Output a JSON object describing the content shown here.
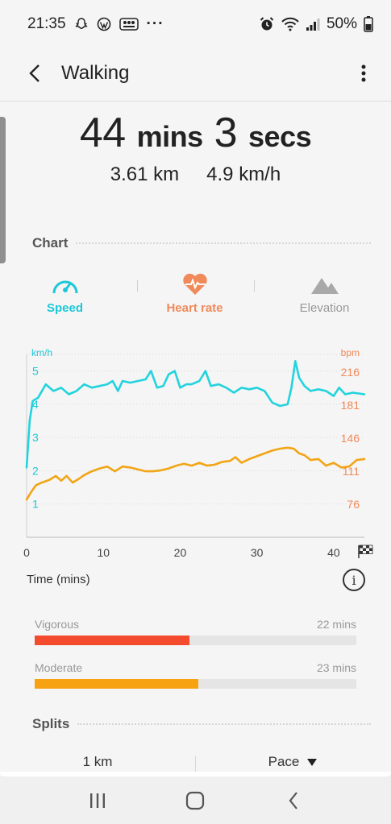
{
  "status_bar": {
    "time": "21:35",
    "notif_icons": [
      "snapchat-ghost-icon",
      "wordpress-icon",
      "boom-app-icon"
    ],
    "overflow": "···",
    "battery": "50%"
  },
  "app_bar": {
    "title": "Walking"
  },
  "summary": {
    "duration_minutes": "44",
    "duration_minutes_unit": "mins",
    "duration_seconds": "3",
    "duration_seconds_unit": "secs",
    "distance": "3.61 km",
    "avg_speed": "4.9 km/h"
  },
  "chart_section": {
    "title": "Chart",
    "tabs": [
      {
        "label": "Speed",
        "color": "#1cc8d8",
        "icon": "speedometer-icon"
      },
      {
        "label": "Heart rate",
        "color": "#f08a5a",
        "icon": "heart-pulse-icon"
      },
      {
        "label": "Elevation",
        "color": "#a9a9a9",
        "icon": "mountain-icon"
      }
    ],
    "time_label": "Time (mins)"
  },
  "chart_data": {
    "type": "line",
    "left_unit": "km/h",
    "right_unit": "bpm",
    "left_ticks": [
      1,
      2,
      3,
      4,
      5
    ],
    "right_ticks": [
      76,
      111,
      146,
      181,
      216
    ],
    "x_ticks": [
      0,
      10,
      20,
      30,
      40
    ],
    "xlim": [
      0,
      44
    ],
    "ylim_left": [
      0,
      5.5
    ],
    "ylim_right": [
      41,
      235
    ],
    "grid": true,
    "series": [
      {
        "name": "Speed",
        "axis": "left",
        "color": "#22d3de",
        "x": [
          0,
          0.4,
          0.8,
          1.5,
          2.5,
          3.5,
          4.5,
          5.5,
          6.5,
          7.5,
          8.5,
          9.5,
          10.5,
          11.2,
          11.9,
          12.5,
          13.5,
          14.5,
          15.5,
          16.2,
          17,
          17.8,
          18.5,
          19.3,
          20,
          20.8,
          21.5,
          22.5,
          23.3,
          24,
          25,
          26,
          27,
          28,
          29,
          30,
          31,
          32,
          33,
          34,
          34.5,
          35,
          35.5,
          36.2,
          37,
          38,
          39,
          40,
          40.7,
          41.5,
          42.5,
          44
        ],
        "values": [
          2.1,
          3.5,
          4.1,
          4.2,
          4.6,
          4.4,
          4.5,
          4.3,
          4.4,
          4.6,
          4.5,
          4.55,
          4.6,
          4.7,
          4.4,
          4.7,
          4.65,
          4.7,
          4.75,
          5.0,
          4.5,
          4.55,
          4.9,
          5.0,
          4.5,
          4.6,
          4.6,
          4.7,
          5.0,
          4.55,
          4.6,
          4.5,
          4.35,
          4.5,
          4.45,
          4.5,
          4.4,
          4.05,
          3.95,
          4.0,
          4.5,
          5.3,
          4.8,
          4.55,
          4.4,
          4.45,
          4.4,
          4.25,
          4.5,
          4.3,
          4.35,
          4.3
        ]
      },
      {
        "name": "Heart rate",
        "axis": "right",
        "color": "#f2a515",
        "x": [
          0,
          0.6,
          1.2,
          2,
          3,
          3.8,
          4.5,
          5.2,
          6,
          6.8,
          7.5,
          8.5,
          9.5,
          10.5,
          11.5,
          12.5,
          13.5,
          14.5,
          15.5,
          16.5,
          17.5,
          18.5,
          19.5,
          20.5,
          21.5,
          22.5,
          23.5,
          24.5,
          25.5,
          26.5,
          27.2,
          28,
          29,
          30,
          31,
          32,
          33,
          34,
          34.8,
          35.5,
          36.2,
          37,
          38,
          39,
          40,
          41,
          42,
          43,
          44
        ],
        "values": [
          81,
          89,
          96,
          99,
          102,
          106,
          101,
          106,
          99,
          103,
          107,
          111,
          114,
          116,
          111,
          116,
          115,
          113,
          111,
          111,
          112,
          114,
          117,
          119,
          117,
          120,
          117,
          118,
          121,
          122,
          126,
          120,
          124,
          127,
          130,
          133,
          135,
          136,
          135,
          130,
          128,
          123,
          124,
          117,
          120,
          115,
          116,
          123,
          124
        ]
      }
    ]
  },
  "intensity": [
    {
      "label": "Vigorous",
      "value": "22 mins",
      "fraction": 0.48,
      "color": "#f44a2d"
    },
    {
      "label": "Moderate",
      "value": "23 mins",
      "fraction": 0.51,
      "color": "#f7a211"
    }
  ],
  "splits": {
    "title": "Splits",
    "col1": "1 km",
    "col2": "Pace"
  }
}
